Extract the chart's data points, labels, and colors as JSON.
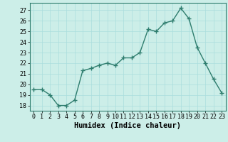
{
  "x": [
    0,
    1,
    2,
    3,
    4,
    5,
    6,
    7,
    8,
    9,
    10,
    11,
    12,
    13,
    14,
    15,
    16,
    17,
    18,
    19,
    20,
    21,
    22,
    23
  ],
  "y": [
    19.5,
    19.5,
    19.0,
    18.0,
    18.0,
    18.5,
    21.3,
    21.5,
    21.8,
    22.0,
    21.8,
    22.5,
    22.5,
    23.0,
    25.2,
    25.0,
    25.8,
    26.0,
    27.2,
    26.2,
    23.5,
    22.0,
    20.5,
    19.2
  ],
  "line_color": "#2e7d6e",
  "marker": "+",
  "marker_size": 4,
  "bg_color": "#cceee8",
  "grid_color": "#aadddd",
  "xlabel": "Humidex (Indice chaleur)",
  "ylim": [
    17.5,
    27.7
  ],
  "xlim": [
    -0.5,
    23.5
  ],
  "yticks": [
    18,
    19,
    20,
    21,
    22,
    23,
    24,
    25,
    26,
    27
  ],
  "xticks": [
    0,
    1,
    2,
    3,
    4,
    5,
    6,
    7,
    8,
    9,
    10,
    11,
    12,
    13,
    14,
    15,
    16,
    17,
    18,
    19,
    20,
    21,
    22,
    23
  ],
  "xtick_labels": [
    "0",
    "1",
    "2",
    "3",
    "4",
    "5",
    "6",
    "7",
    "8",
    "9",
    "10",
    "11",
    "12",
    "13",
    "14",
    "15",
    "16",
    "17",
    "18",
    "19",
    "20",
    "21",
    "22",
    "23"
  ],
  "tick_fontsize": 6,
  "xlabel_fontsize": 7.5
}
